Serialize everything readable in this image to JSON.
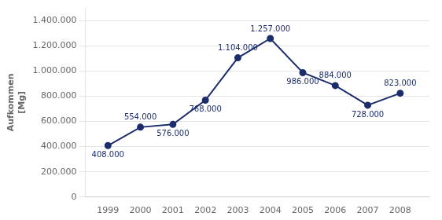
{
  "chart_data": {
    "type": "line",
    "ylabel": [
      "Aufkommen",
      "[Mg]"
    ],
    "x": [
      1999,
      2000,
      2001,
      2002,
      2003,
      2004,
      2005,
      2006,
      2007,
      2008
    ],
    "values": [
      408000,
      554000,
      576000,
      768000,
      1104000,
      1257000,
      986000,
      884000,
      728000,
      823000
    ],
    "value_labels": [
      "408.000",
      "554.000",
      "576.000",
      "768.000",
      "1.104.000",
      "1.257.000",
      "986.000",
      "884.000",
      "728.000",
      "823.000"
    ],
    "data_labels": true,
    "color": "#1C2D6B",
    "marker": "o",
    "xlim": [
      1998.3,
      2008.9
    ],
    "xticks": [
      1999,
      2000,
      2001,
      2002,
      2003,
      2004,
      2005,
      2006,
      2007,
      2008
    ],
    "ylim": [
      0,
      1500000
    ],
    "yticks": [
      0,
      {
        "value": 200000,
        "label": "200.000"
      },
      {
        "value": 400000,
        "label": "400.000"
      },
      {
        "value": 600000,
        "label": "600.000"
      },
      {
        "value": 800000,
        "label": "800.000"
      },
      {
        "value": 1000000,
        "label": "1.000.000"
      },
      {
        "value": 1200000,
        "label": "1.200.000"
      },
      {
        "value": 1400000,
        "label": "1.400.000"
      }
    ],
    "grid": true
  }
}
